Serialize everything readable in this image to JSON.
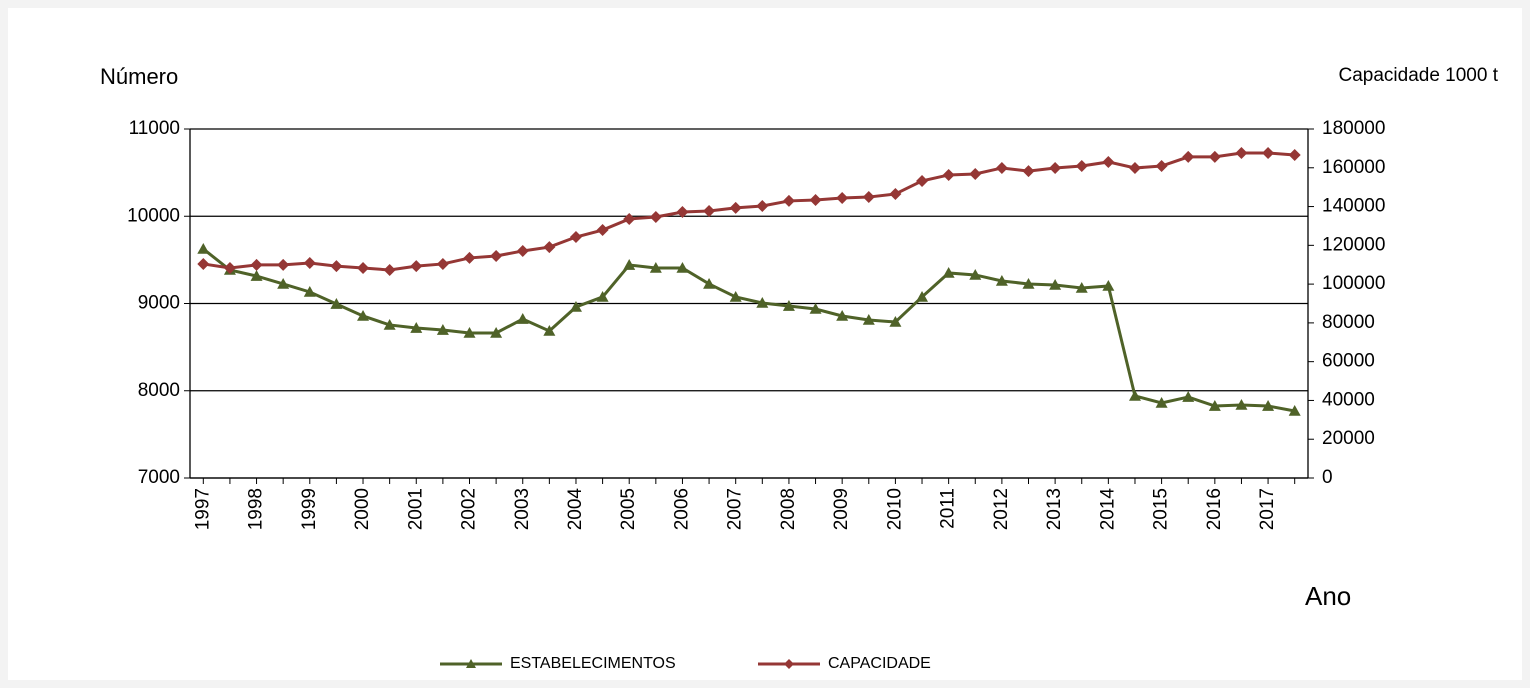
{
  "chart_data": {
    "type": "line",
    "y_label": "Número",
    "y2_label": "Capacidade  1000 t",
    "x_label": "Ano",
    "categories": [
      "1997",
      null,
      "1998",
      null,
      "1999",
      null,
      "2000",
      null,
      "2001",
      null,
      "2002",
      null,
      "2003",
      null,
      "2004",
      null,
      "2005",
      null,
      "2006",
      null,
      "2007",
      null,
      "2008",
      null,
      "2009",
      null,
      "2010",
      null,
      "2011",
      null,
      "2012",
      null,
      "2013",
      null,
      "2014",
      null,
      "2015",
      null,
      "2016",
      null,
      "2017",
      null
    ],
    "series": [
      {
        "name": "ESTABELECIMENTOS",
        "color": "#4f6228",
        "marker": "triangle",
        "values": [
          9625,
          9384,
          9315,
          9224,
          9132,
          8994,
          8857,
          8754,
          8719,
          8696,
          8662,
          8662,
          8822,
          8685,
          8960,
          9075,
          9441,
          9407,
          9407,
          9224,
          9075,
          9006,
          8971,
          8937,
          8857,
          8811,
          8788,
          9075,
          9350,
          9327,
          9258,
          9224,
          9212,
          9178,
          9201,
          7940,
          7860,
          7928,
          7825,
          7837,
          7825,
          7768
        ]
      },
      {
        "name": "CAPACIDADE",
        "color": "#953735",
        "marker": "diamond",
        "axis": "y2",
        "values": [
          110400,
          108300,
          109900,
          109900,
          110900,
          109300,
          108300,
          107300,
          109300,
          110400,
          113500,
          114500,
          117100,
          119100,
          124300,
          127900,
          133600,
          134600,
          137200,
          137700,
          139300,
          140300,
          142900,
          143400,
          144400,
          144900,
          146500,
          153200,
          156300,
          156800,
          159900,
          158300,
          159900,
          160900,
          163000,
          159900,
          160900,
          165600,
          165600,
          167600,
          167600,
          166600
        ]
      }
    ],
    "ylim": [
      7000,
      11000
    ],
    "yticks": [
      7000,
      8000,
      9000,
      10000,
      11000
    ],
    "y2lim": [
      0,
      180000
    ],
    "y2ticks": [
      0,
      20000,
      40000,
      60000,
      80000,
      100000,
      120000,
      140000,
      160000,
      180000
    ],
    "grid": true,
    "legend": "bottom"
  }
}
